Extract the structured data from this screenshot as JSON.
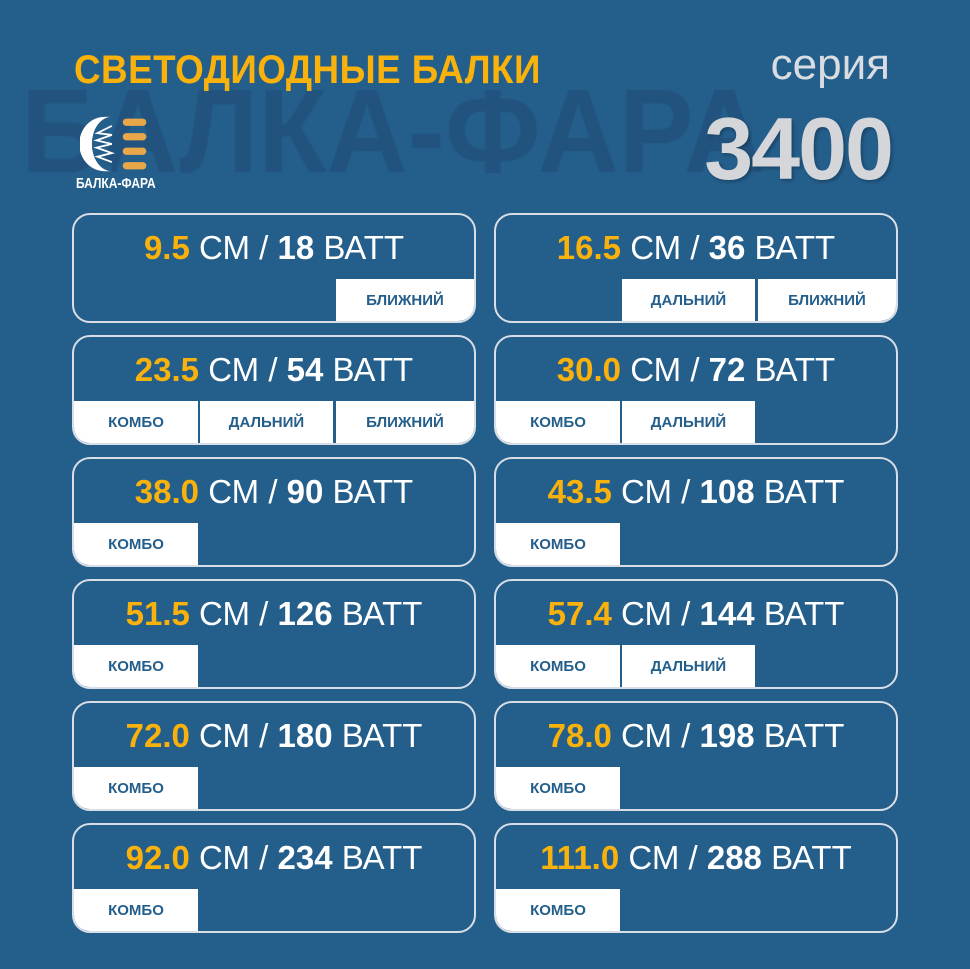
{
  "header": {
    "title": "СВЕТОДИОДНЫЕ БАЛКИ",
    "series_label": "серия",
    "series_number": "3400",
    "logo_text": "БАЛКА-ФАРА",
    "watermark": "БАЛКА-ФАРА"
  },
  "colors": {
    "background": "#245e8b",
    "accent": "#f9b10c",
    "tag_bg": "#ffffff"
  },
  "units": {
    "length": "СМ",
    "power": "ВАТТ",
    "sep": "/"
  },
  "tag_labels": {
    "combo": "КОМБО",
    "far": "ДАЛЬНИЙ",
    "near": "БЛИЖНИЙ"
  },
  "items": [
    {
      "length": "9.5",
      "watt": "18",
      "tags": [
        "near"
      ]
    },
    {
      "length": "16.5",
      "watt": "36",
      "tags": [
        "far",
        "near"
      ]
    },
    {
      "length": "23.5",
      "watt": "54",
      "tags": [
        "combo",
        "far",
        "near"
      ]
    },
    {
      "length": "30.0",
      "watt": "72",
      "tags": [
        "combo",
        "far"
      ]
    },
    {
      "length": "38.0",
      "watt": "90",
      "tags": [
        "combo"
      ]
    },
    {
      "length": "43.5",
      "watt": "108",
      "tags": [
        "combo"
      ]
    },
    {
      "length": "51.5",
      "watt": "126",
      "tags": [
        "combo"
      ]
    },
    {
      "length": "57.4",
      "watt": "144",
      "tags": [
        "combo",
        "far"
      ]
    },
    {
      "length": "72.0",
      "watt": "180",
      "tags": [
        "combo"
      ]
    },
    {
      "length": "78.0",
      "watt": "198",
      "tags": [
        "combo"
      ]
    },
    {
      "length": "92.0",
      "watt": "234",
      "tags": [
        "combo"
      ]
    },
    {
      "length": "111.0",
      "watt": "288",
      "tags": [
        "combo"
      ]
    }
  ]
}
